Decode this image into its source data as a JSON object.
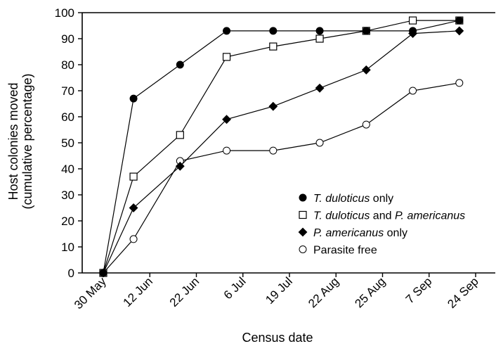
{
  "chart_data": {
    "type": "line",
    "title": "",
    "xlabel": "Census date",
    "ylabel_lines": [
      "Host colonies moved",
      "(cumulative percentage)"
    ],
    "categories": [
      "30 May",
      "12 Jun",
      "22 Jun",
      "6 Jul",
      "19 Jul",
      "22 Aug",
      "25 Aug",
      "7 Sep",
      "24 Sep"
    ],
    "x": [
      0,
      1,
      2,
      3,
      4,
      5,
      6,
      7,
      8
    ],
    "ylim": [
      0,
      100
    ],
    "yticks": [
      0,
      10,
      20,
      30,
      40,
      50,
      60,
      70,
      80,
      90,
      100
    ],
    "grid": false,
    "legend_position": "bottom-right",
    "series": [
      {
        "name_parts": [
          {
            "text": "T. duloticus",
            "italic": true
          },
          {
            "text": " only",
            "italic": false
          }
        ],
        "marker": "filled-circle",
        "x": [
          0,
          0.65,
          1.65,
          2.65,
          3.65,
          4.65,
          5.65,
          6.65,
          7.65
        ],
        "values": [
          0,
          67,
          80,
          93,
          93,
          93,
          93,
          93,
          97
        ]
      },
      {
        "name_parts": [
          {
            "text": "T. duloticus",
            "italic": true
          },
          {
            "text": " and ",
            "italic": false
          },
          {
            "text": "P. americanus",
            "italic": true
          }
        ],
        "marker": "open-square",
        "x": [
          0,
          0.65,
          1.65,
          2.65,
          3.65,
          4.65,
          5.65,
          6.65,
          7.65
        ],
        "values": [
          0,
          37,
          53,
          83,
          87,
          90,
          93,
          97,
          97
        ]
      },
      {
        "name_parts": [
          {
            "text": "P. americanus",
            "italic": true
          },
          {
            "text": " only",
            "italic": false
          }
        ],
        "marker": "filled-diamond",
        "x": [
          0,
          0.65,
          1.65,
          2.65,
          3.65,
          4.65,
          5.65,
          6.65,
          7.65
        ],
        "values": [
          0,
          25,
          41,
          59,
          64,
          71,
          78,
          92,
          93
        ]
      },
      {
        "name_parts": [
          {
            "text": "Parasite free",
            "italic": false
          }
        ],
        "marker": "open-circle",
        "x": [
          0,
          0.65,
          1.65,
          2.65,
          3.65,
          4.65,
          5.65,
          6.65,
          7.65
        ],
        "values": [
          0,
          13,
          43,
          47,
          47,
          50,
          57,
          70,
          73
        ]
      }
    ]
  }
}
